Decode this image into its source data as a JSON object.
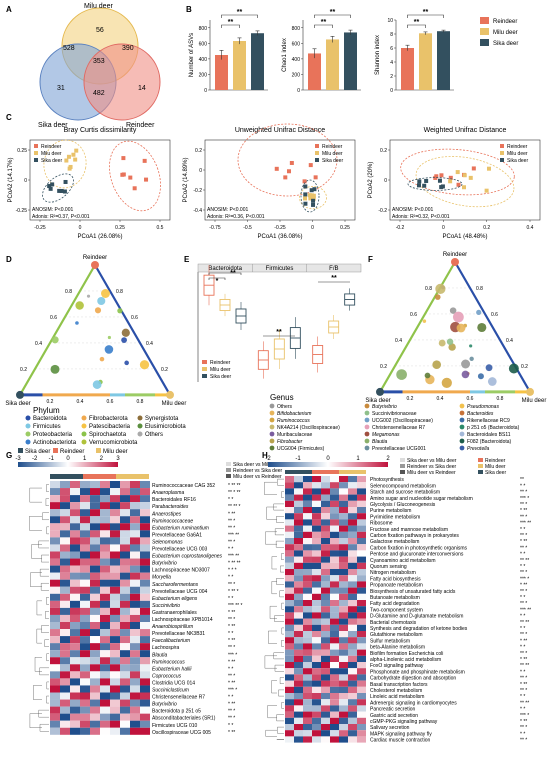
{
  "panels": {
    "A": "A",
    "B": "B",
    "C": "C",
    "D": "D",
    "E": "E",
    "F": "F",
    "G": "G",
    "H": "H"
  },
  "colors": {
    "reindeer": "#e8735a",
    "milu": "#e9c26a",
    "sika": "#33505f"
  },
  "legend_groups": [
    "Reindeer",
    "Milu deer",
    "Sika deer"
  ],
  "venn": {
    "top": "Milu deer",
    "left": "Sika deer",
    "right": "Reindeer",
    "values": [
      "56",
      "528",
      "390",
      "353",
      "31",
      "482",
      "14"
    ]
  },
  "sig": "**",
  "sig1": "*",
  "chart_data": [
    {
      "type": "bar",
      "ylabel": "Number of ASVs",
      "categories": [
        "Reindeer",
        "Milu deer",
        "Sika deer"
      ],
      "values": [
        450,
        630,
        730
      ],
      "errors": [
        60,
        40,
        30
      ],
      "ylim": [
        0,
        900
      ],
      "ticks": [
        "0",
        "200",
        "400",
        "600",
        "800"
      ]
    },
    {
      "type": "bar",
      "ylabel": "Chao1 index",
      "categories": [
        "Reindeer",
        "Milu deer",
        "Sika deer"
      ],
      "values": [
        470,
        650,
        740
      ],
      "errors": [
        60,
        40,
        30
      ],
      "ylim": [
        0,
        900
      ],
      "ticks": [
        "0",
        "200",
        "400",
        "600",
        "800"
      ]
    },
    {
      "type": "bar",
      "ylabel": "Shannon index",
      "categories": [
        "Reindeer",
        "Milu deer",
        "Sika deer"
      ],
      "values": [
        6.0,
        8.1,
        8.4
      ],
      "errors": [
        0.4,
        0.2,
        0.15
      ],
      "ylim": [
        0,
        10
      ],
      "ticks": [
        "0",
        "2",
        "4",
        "6",
        "8",
        "10"
      ]
    },
    {
      "type": "scatter",
      "title": "Bray Curtis dissimilarity",
      "xlabel": "PCoA1 (26.08%)",
      "ylabel": "PCoA2 (14.17%)",
      "xticks": [
        "-0.25",
        "0",
        "0.25",
        "0.5"
      ],
      "yticks": [
        "-0.25",
        "0",
        "0.25"
      ],
      "stats": [
        "ANOSIM: P<0.001",
        "Adonis: R²=0.37, P<0.001"
      ]
    },
    {
      "type": "scatter",
      "title": "Unweighted Unifrac Distance",
      "xlabel": "PCoA1 (36.08%)",
      "ylabel": "PCoA2 (14.89%)",
      "xticks": [
        "-0.75",
        "-0.5",
        "-0.25",
        "0",
        "0.25"
      ],
      "yticks": [
        "-0.4",
        "-0.2",
        "0",
        "0.2"
      ],
      "stats": [
        "ANOSIM: P<0.001",
        "Adonis: R²=0.36, P<0.001"
      ]
    },
    {
      "type": "scatter",
      "title": "Weighted Unifrac Distance",
      "xlabel": "PCoA1 (48.48%)",
      "ylabel": "PCoA2 (20%)",
      "xticks": [
        "-0.2",
        "0",
        "0.2",
        "0.4"
      ],
      "yticks": [
        "-0.2",
        "0",
        "0.2"
      ],
      "stats": [
        "ANOSIM: P<0.001",
        "Adonis: R²=0.32, P<0.001"
      ]
    },
    {
      "type": "box",
      "groups": [
        "Bacteroidota",
        "Firmicutes",
        "F/B"
      ],
      "series": [
        "Reindeer",
        "Milu deer",
        "Sika deer"
      ]
    }
  ],
  "ternary": {
    "top": "Reindeer",
    "left": "Sika deer",
    "right": "Milu deer",
    "ticks": [
      "0.2",
      "0.4",
      "0.6",
      "0.8"
    ]
  },
  "phylum": {
    "title": "Phylum",
    "items": [
      "Bacteroidota",
      "Firmicutes",
      "Proteobacteria",
      "Actinobacteriota",
      "Fibrobacterota",
      "Patescibacteria",
      "Spirochaetota",
      "Verrucomicrobiota",
      "Synergistota",
      "Elusimicrobiota",
      "Others"
    ],
    "colors": [
      "#2a4fa8",
      "#7ec8e3",
      "#9ccc65",
      "#3a7ecb",
      "#f0a94e",
      "#f6c344",
      "#8bc34a",
      "#b0c23a",
      "#8d6e3a",
      "#5b8f3f",
      "#aaaaaa"
    ]
  },
  "genus": {
    "title": "Genus",
    "items": [
      "Others",
      "Bifidobacterium",
      "Ruminococcus",
      "NK4A214 (Oscillospiraceae)",
      "Muribaculaceae",
      "Fibrobacter",
      "UCG004 (Firmicutes)",
      "Butyrivibrio",
      "Succinivibrionaceae",
      "UCG002 (Oscillospiraceae)",
      "Christensenellaceae R7",
      "Megamonas",
      "Blautia",
      "Prevotellaceae UCG001",
      "Pseudomonas",
      "Bacteroides",
      "Rikenellaceae RC9",
      "p 251 o5 (Bacteroidota)",
      "Bacteroidales BS11",
      "F082 (Bacteroidota)",
      "Prevotella"
    ],
    "colors": [
      "#999999",
      "#e7b55b",
      "#d4a642",
      "#c8b96e",
      "#7a5c9e",
      "#b7a34d",
      "#5e7d3a",
      "#c98b3e",
      "#8fc08b",
      "#72a0c8",
      "#e6a0b8",
      "#a05040",
      "#8ab06b",
      "#6b8f9e",
      "#f2c14e",
      "#c7733a",
      "#3c6ea8",
      "#2c8a6a",
      "#a3b8d8",
      "#1c5c4a",
      "#3a5ea8"
    ],
    "ital": [
      false,
      true,
      true,
      false,
      false,
      true,
      false,
      true,
      false,
      false,
      false,
      true,
      true,
      false,
      true,
      true,
      false,
      false,
      false,
      false,
      true
    ]
  },
  "g_heat": {
    "scale": [
      "-3",
      "-2",
      "-1",
      "0",
      "1",
      "2",
      "3"
    ],
    "groups": [
      "Sika deer",
      "Reindeer",
      "Milu deer"
    ],
    "comparisons": [
      "Sika deer vs Milu deer",
      "Reindeer vs Sika deer",
      "Milu deer vs Reindeer"
    ],
    "rows": [
      "Ruminococcaceae CAG 352",
      "Anaeroplasma",
      "Bacteroidales RF16",
      "Parabacteroides",
      "Anaerostipes",
      "Ruminococcaceae",
      "Eubacterium ruminantium",
      "Prevotellaceae Ga6A1",
      "Selenomonas",
      "Prevotellaceae UCG 003",
      "Eubacterium coprostanoligenes",
      "Butyrivibrio",
      "Lachnospiraceae ND3007",
      "Moryella",
      "Saccharofermentans",
      "Prevotellaceae UCG 004",
      "Eubacterium eligens",
      "Succinivibrio",
      "Gastranaerophilales",
      "Lachnospiraceae XPB1014",
      "Anaerobiospirillum",
      "Prevotellaceae NK3B31",
      "Faecalibacterium",
      "Lachnospira",
      "Blautia",
      "Ruminococcus",
      "Eubacterium hallii",
      "Coprococcus",
      "Clostridia UCG 014",
      "Succiniclasticum",
      "Christensenellaceae R7",
      "Butyrivibrio",
      "Bacteroidota p 251 o5",
      "Absconditabacteriales (SR1)",
      "Firmicutes UCG 010",
      "Oscillospiraceae UCG 005"
    ],
    "ital": [
      false,
      true,
      false,
      true,
      true,
      true,
      true,
      false,
      true,
      false,
      true,
      true,
      false,
      true,
      true,
      false,
      true,
      true,
      false,
      false,
      true,
      false,
      true,
      true,
      true,
      true,
      true,
      true,
      false,
      true,
      false,
      true,
      false,
      false,
      false,
      false
    ],
    "stars": [
      "* ** **",
      "** * **",
      "* *",
      "** ** *",
      "* **",
      "** *",
      "** *",
      "*** **",
      "** *",
      "* *",
      "*** **",
      "* ** **",
      "* * *",
      "* *",
      "** *",
      "* ** *",
      "* *",
      "*** ** *",
      "* **",
      "** *",
      "* **",
      "* *",
      "* **",
      "** *",
      "*** *",
      "* **",
      "* *",
      "** *",
      "* **",
      "*** *",
      "* *",
      "* **",
      "** *",
      "** *",
      "* *",
      "* **"
    ]
  },
  "h_heat": {
    "scale": [
      "-2",
      "-1",
      "0",
      "1",
      "2"
    ],
    "comparisons": [
      "Sika deer vs Milu deer",
      "Reindeer vs Sika deer",
      "Milu deer vs Reindeer"
    ],
    "rows": [
      "Photosynthesis",
      "Selenocompound metabolism",
      "Starch and sucrose metabolism",
      "Amino sugar and nucleotide sugar metabolism",
      "Glycolysis / Gluconeogenesis",
      "Purine metabolism",
      "Pyrimidine metabolism",
      "Ribosome",
      "Fructose and mannose metabolism",
      "Carbon fixation pathways in prokaryotes",
      "Galactose metabolism",
      "Carbon fixation in photosynthetic organisms",
      "Pentose and glucuronate interconversions",
      "Cyanoamino acid metabolism",
      "Quorum sensing",
      "Nitrogen metabolism",
      "Fatty acid biosynthesis",
      "Propanoate metabolism",
      "Biosynthesis of unsaturated fatty acids",
      "Butanoate metabolism",
      "Fatty acid degradation",
      "Two-component system",
      "D-Glutamine and D-glutamate metabolism",
      "Bacterial chemotaxis",
      "Synthesis and degradation of ketone bodies",
      "Glutathione metabolism",
      "Sulfur metabolism",
      "beta-Alanine metabolism",
      "Biofilm formation Escherichia coli",
      "alpha-Linolenic acid metabolism",
      "FoxO signaling pathway",
      "Phosphonate and phosphinate metabolism",
      "Carbohydrate digestion and absorption",
      "Basal transcription factors",
      "Cholesterol metabolism",
      "Linoleic acid metabolism",
      "Adrenergic signaling in cardiomyocytes",
      "Pancreatic secretion",
      "Gastric acid secretion",
      "cGMP-PKG signaling pathway",
      "Salivary secretion",
      "MAPK signaling pathway fly",
      "Cardiac muscle contraction"
    ],
    "stars": [
      "**",
      "* *",
      "** *",
      "*** *",
      "** *",
      "* **",
      "** *",
      "*** **",
      "* *",
      "** *",
      "* **",
      "** *",
      "* *",
      "** **",
      "* *",
      "** *",
      "*** *",
      "* **",
      "** *",
      "* *",
      "** *",
      "*** **",
      "* *",
      "** **",
      "* *",
      "** *",
      "* **",
      "* *",
      "** *",
      "* **",
      "** **",
      "* *",
      "** *",
      "* **",
      "** *",
      "* *",
      "** **",
      "* *",
      "*** *",
      "* **",
      "** *",
      "* *",
      "** *"
    ]
  }
}
